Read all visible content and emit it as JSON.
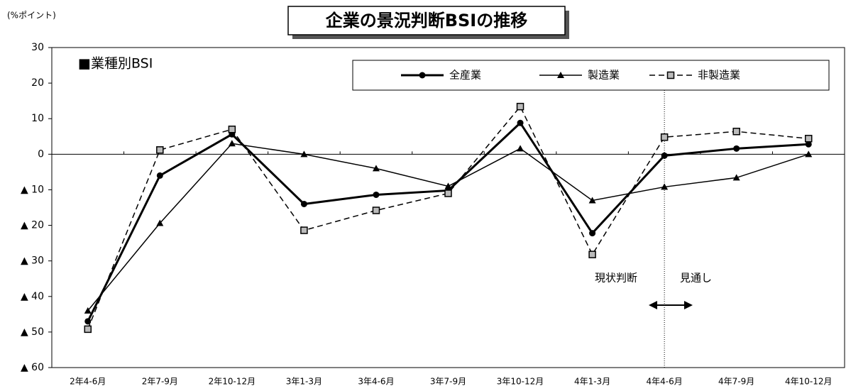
{
  "chart_data": {
    "type": "line",
    "title": "企業の景況判断BSIの推移",
    "subtitle": "■業種別BSI",
    "y_unit": "(%ポイント)",
    "annotations": [
      "現状判断",
      "見通し"
    ],
    "categories": [
      "2年4-6月",
      "2年7-9月",
      "2年10-12月",
      "3年1-3月",
      "3年4-6月",
      "3年7-9月",
      "3年10-12月",
      "4年1-3月",
      "4年4-6月",
      "4年7-9月",
      "4年10-12月"
    ],
    "series": [
      {
        "name": "全産業",
        "color": "#000000",
        "marker": "circle",
        "line_style": "solid",
        "line_width": 3,
        "values": [
          -47,
          -6,
          5.6,
          -14,
          -11.4,
          -10.2,
          8.8,
          -22.2,
          -0.4,
          1.6,
          2.8
        ]
      },
      {
        "name": "製造業",
        "color": "#000000",
        "marker": "triangle",
        "line_style": "solid",
        "line_width": 1.5,
        "values": [
          -44,
          -19.4,
          3,
          0,
          -4,
          -9,
          1.6,
          -13,
          -9.2,
          -6.6,
          0
        ]
      },
      {
        "name": "非製造業",
        "color": "#000000",
        "marker": "square",
        "line_style": "dashed",
        "line_width": 1.5,
        "values": [
          -49.2,
          1.2,
          7,
          -21.4,
          -15.8,
          -11,
          13.4,
          -28.2,
          4.8,
          6.4,
          4.4
        ]
      }
    ],
    "ylim": [
      -60,
      30
    ],
    "yticks": [
      {
        "value": -60,
        "label": "▲ 60"
      },
      {
        "value": -50,
        "label": "▲ 50"
      },
      {
        "value": -40,
        "label": "▲ 40"
      },
      {
        "value": -30,
        "label": "▲ 30"
      },
      {
        "value": -20,
        "label": "▲ 20"
      },
      {
        "value": -10,
        "label": "▲ 10"
      },
      0,
      10,
      20,
      30
    ],
    "grid": false
  }
}
